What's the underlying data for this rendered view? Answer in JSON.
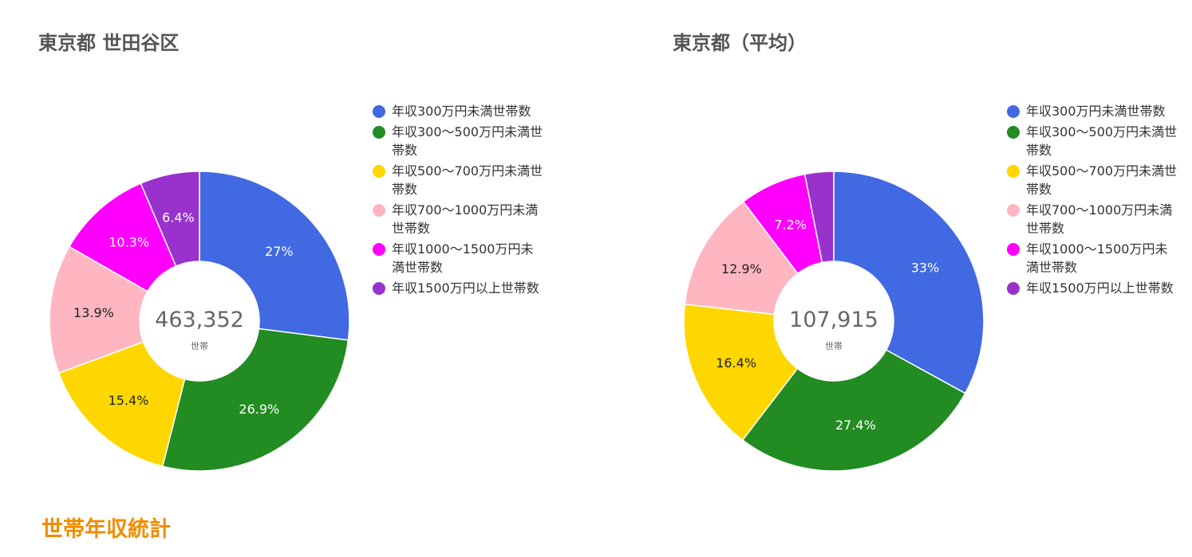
{
  "colors": {
    "slices": [
      "#4169e1",
      "#228b22",
      "#ffd700",
      "#ffb6c1",
      "#ff00ff",
      "#9932cc"
    ],
    "heading": "#f08c00"
  },
  "section_heading": "世帯年収統計",
  "chart_data": [
    {
      "type": "pie",
      "title": "東京都 世田谷区",
      "center_total": "463,352",
      "center_unit": "世帯",
      "categories": [
        "年収300万円未満世帯数",
        "年収300～500万円未満世帯数",
        "年収500～700万円未満世帯数",
        "年収700～1000万円未満世帯数",
        "年収1000～1500万円未満世帯数",
        "年収1500万円以上世帯数"
      ],
      "values": [
        27.0,
        26.9,
        15.4,
        13.9,
        10.3,
        6.4
      ],
      "data_labels": [
        "27%",
        "26.9%",
        "15.4%",
        "13.9%",
        "10.3%",
        "6.4%"
      ],
      "legend_position": "right"
    },
    {
      "type": "pie",
      "title": "東京都（平均）",
      "center_total": "107,915",
      "center_unit": "世帯",
      "categories": [
        "年収300万円未満世帯数",
        "年収300～500万円未満世帯数",
        "年収500～700万円未満世帯数",
        "年収700～1000万円未満世帯数",
        "年収1000～1500万円未満世帯数",
        "年収1500万円以上世帯数"
      ],
      "values": [
        33.0,
        27.4,
        16.4,
        12.9,
        7.2,
        3.1
      ],
      "data_labels": [
        "33%",
        "27.4%",
        "16.4%",
        "12.9%",
        "7.2%",
        ""
      ],
      "legend_position": "right"
    }
  ]
}
